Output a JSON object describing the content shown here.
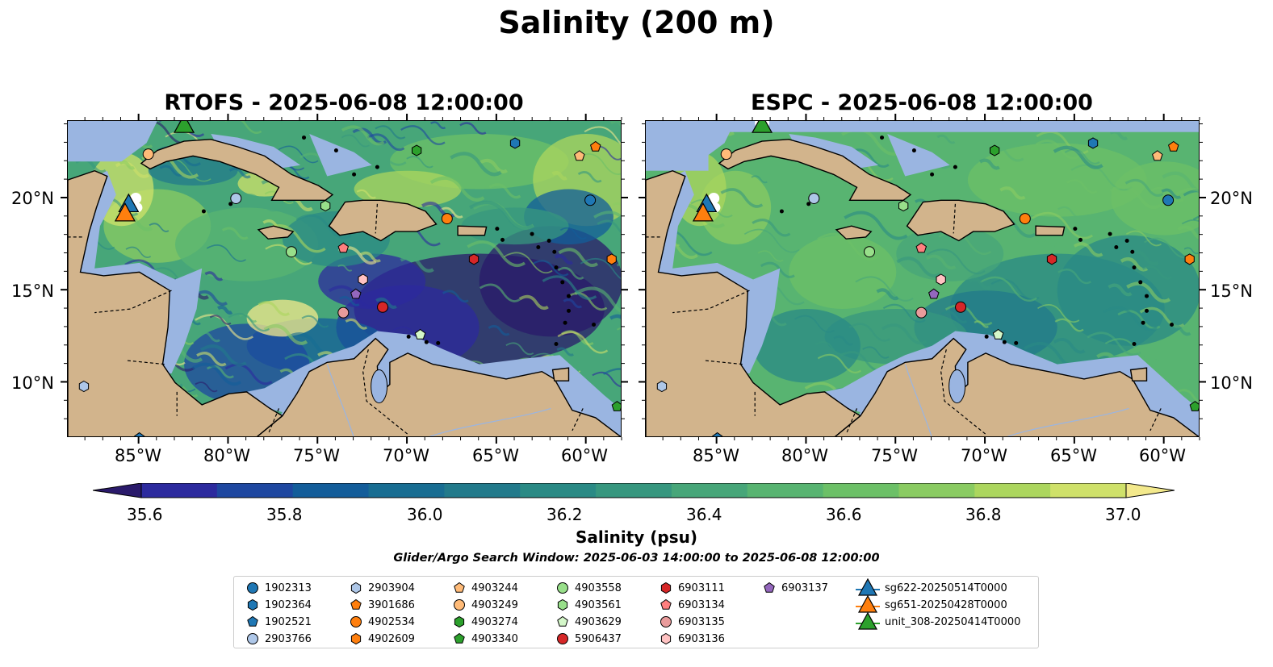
{
  "figure": {
    "title": "Salinity (200 m)",
    "search_window": "Glider/Argo Search Window: 2025-06-03 14:00:00 to 2025-06-08 12:00:00"
  },
  "panels": [
    {
      "title": "RTOFS - 2025-06-08 12:00:00",
      "model": "RTOFS"
    },
    {
      "title": "ESPC - 2025-06-08 12:00:00",
      "model": "ESPC"
    }
  ],
  "map_extent": {
    "lon": [
      -89,
      -58
    ],
    "lat": [
      7,
      24.2
    ]
  },
  "lon_ticks": [
    "85°W",
    "80°W",
    "75°W",
    "70°W",
    "65°W",
    "60°W"
  ],
  "lat_ticks": [
    "20°N",
    "15°N",
    "10°N"
  ],
  "colorbar": {
    "label": "Salinity (psu)",
    "range": [
      35.5,
      37.0
    ],
    "extend": "both",
    "tick_labels": [
      "35.6",
      "35.8",
      "36.0",
      "36.2",
      "36.4",
      "36.6",
      "36.8",
      "37.0"
    ],
    "colors": [
      "#2a1a6b",
      "#2c2a9e",
      "#1e47a0",
      "#135d9a",
      "#186d92",
      "#227a8b",
      "#2a8a85",
      "#37977f",
      "#47a679",
      "#58b471",
      "#6cc067",
      "#8acb62",
      "#acd65e",
      "#cfe16a",
      "#f3e98c"
    ]
  },
  "legend": {
    "floats": [
      {
        "id": "1902313",
        "marker": "circle",
        "color": "#1f77b4",
        "lon": -59.8,
        "lat": 19.9
      },
      {
        "id": "1902364",
        "marker": "hexagon",
        "color": "#1f77b4",
        "lon": -64.0,
        "lat": 23.0
      },
      {
        "id": "1902521",
        "marker": "pentagon",
        "color": "#1f77b4",
        "lon": -85.0,
        "lat": 7.0
      },
      {
        "id": "2903766",
        "marker": "circle",
        "color": "#aec7e8",
        "lon": -79.6,
        "lat": 20.0
      },
      {
        "id": "2903904",
        "marker": "hexagon",
        "color": "#aec7e8",
        "lon": -88.1,
        "lat": 9.8
      },
      {
        "id": "3901686",
        "marker": "pentagon",
        "color": "#ff7f0e",
        "lon": -59.5,
        "lat": 22.8
      },
      {
        "id": "4902534",
        "marker": "circle",
        "color": "#ff7f0e",
        "lon": -67.8,
        "lat": 18.9
      },
      {
        "id": "4902609",
        "marker": "hexagon",
        "color": "#ff7f0e",
        "lon": -58.6,
        "lat": 16.7
      },
      {
        "id": "4903244",
        "marker": "pentagon",
        "color": "#ffbb78",
        "lon": -60.4,
        "lat": 22.3
      },
      {
        "id": "4903249",
        "marker": "circle",
        "color": "#ffbb78",
        "lon": -84.5,
        "lat": 22.4
      },
      {
        "id": "4903274",
        "marker": "hexagon",
        "color": "#2ca02c",
        "lon": -69.5,
        "lat": 22.6
      },
      {
        "id": "4903340",
        "marker": "pentagon",
        "color": "#2ca02c",
        "lon": -58.3,
        "lat": 8.7
      },
      {
        "id": "4903558",
        "marker": "circle",
        "color": "#98df8a",
        "lon": -76.5,
        "lat": 17.1
      },
      {
        "id": "4903561",
        "marker": "hexagon",
        "color": "#98df8a",
        "lon": -74.6,
        "lat": 19.6
      },
      {
        "id": "4903629",
        "marker": "pentagon",
        "color": "#d4f7c9",
        "lon": -69.3,
        "lat": 12.6
      },
      {
        "id": "5906437",
        "marker": "circle",
        "color": "#d62728",
        "lon": -71.4,
        "lat": 14.1
      },
      {
        "id": "6903111",
        "marker": "hexagon",
        "color": "#d62728",
        "lon": -66.3,
        "lat": 16.7
      },
      {
        "id": "6903134",
        "marker": "pentagon",
        "color": "#ff7f7f",
        "lon": -73.6,
        "lat": 17.3
      },
      {
        "id": "6903135",
        "marker": "circle",
        "color": "#e99b9b",
        "lon": -73.6,
        "lat": 13.8
      },
      {
        "id": "6903136",
        "marker": "hexagon",
        "color": "#ffc2c2",
        "lon": -72.5,
        "lat": 15.6
      },
      {
        "id": "6903137",
        "marker": "pentagon",
        "color": "#9467bd",
        "lon": -72.9,
        "lat": 14.8
      }
    ],
    "gliders": [
      {
        "id": "sg622-20250514T0000",
        "color": "#1f77b4",
        "lon": -85.6,
        "lat": 19.7
      },
      {
        "id": "sg651-20250428T0000",
        "color": "#ff7f0e",
        "lon": -85.8,
        "lat": 19.2
      },
      {
        "id": "unit_308-20250414T0000",
        "color": "#2ca02c",
        "lon": -82.5,
        "lat": 24.0
      }
    ]
  }
}
